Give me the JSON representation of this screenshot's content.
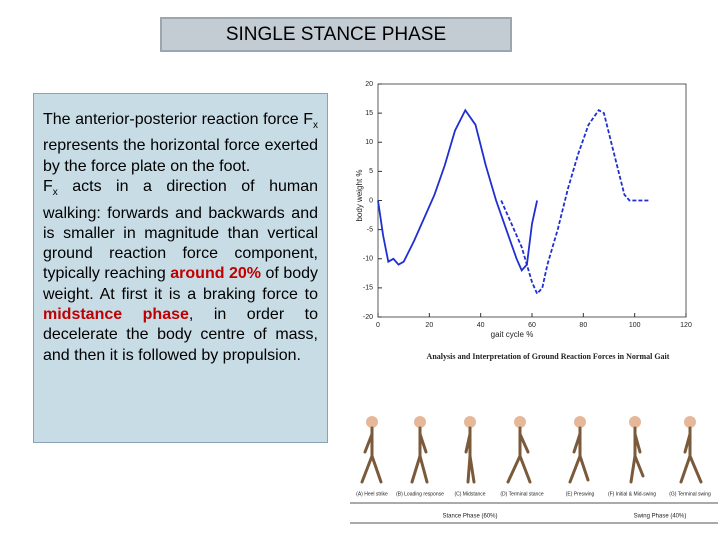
{
  "title": "SINGLE STANCE PHASE",
  "text_box": {
    "paragraphs": [
      [
        {
          "text": "The anterior-posterior reaction force F",
          "style": "normal"
        },
        {
          "text": "x",
          "style": "sub"
        },
        {
          "text": " represents the horizontal force exerted by the force plate on the foot.",
          "style": "normal"
        }
      ],
      [
        {
          "text": "F",
          "style": "normal"
        },
        {
          "text": "x",
          "style": "sub"
        },
        {
          "text": " acts in a direction of human walking: forwards and backwards and is smaller in magnitude than vertical ground reaction force component, typically reaching ",
          "style": "normal"
        },
        {
          "text": "around 20%",
          "style": "red"
        },
        {
          "text": " of body weight. At first it is a braking force to ",
          "style": "normal"
        },
        {
          "text": "midstance phase",
          "style": "red"
        },
        {
          "text": ", in order to decelerate the body centre of mass, and then it is followed by propulsion.",
          "style": "normal"
        }
      ]
    ]
  },
  "chart_data": {
    "type": "line",
    "x_label": "gait cycle %",
    "y_label": "body weight %",
    "xlim": [
      0,
      120
    ],
    "xticks": [
      0,
      20,
      40,
      60,
      80,
      100,
      120
    ],
    "ylim": [
      -20,
      20
    ],
    "yticks": [
      -20,
      -15,
      -10,
      -5,
      0,
      5,
      10,
      15,
      20
    ],
    "grid": false,
    "series": [
      {
        "color": "#1f2fd0",
        "dash": false,
        "x": [
          0,
          2,
          4,
          6,
          8,
          10,
          14,
          18,
          22,
          26,
          30,
          34,
          38,
          42,
          46,
          50,
          54,
          56,
          58,
          60,
          62
        ],
        "values": [
          0,
          -6,
          -10.5,
          -10,
          -11,
          -10.5,
          -7,
          -3,
          1,
          6,
          12,
          15.5,
          13,
          6,
          0,
          -5,
          -10,
          -12,
          -11,
          -4,
          0
        ]
      },
      {
        "color": "#1f2fd0",
        "dash": true,
        "x": [
          48,
          52,
          56,
          60,
          62,
          64,
          66,
          70,
          74,
          78,
          82,
          86,
          88,
          92,
          96,
          98,
          102,
          106
        ],
        "values": [
          0,
          -4,
          -8,
          -14,
          -16,
          -15,
          -11,
          -5,
          2,
          8,
          13,
          15.5,
          15,
          8,
          1,
          0,
          0,
          0
        ]
      }
    ]
  },
  "caption": "Analysis and Interpretation of Ground Reaction Forces in Normal Gait",
  "phase_labels": [
    "(A) Heel strike",
    "(B) Loading response",
    "(C) Midstance",
    "(D) Terminal stance",
    "(E) Preswing",
    "(F) Initial & Mid-swing",
    "(G) Terminal swing"
  ],
  "period_labels": [
    "Stance Phase (60%)",
    "Swing Phase (40%)"
  ]
}
